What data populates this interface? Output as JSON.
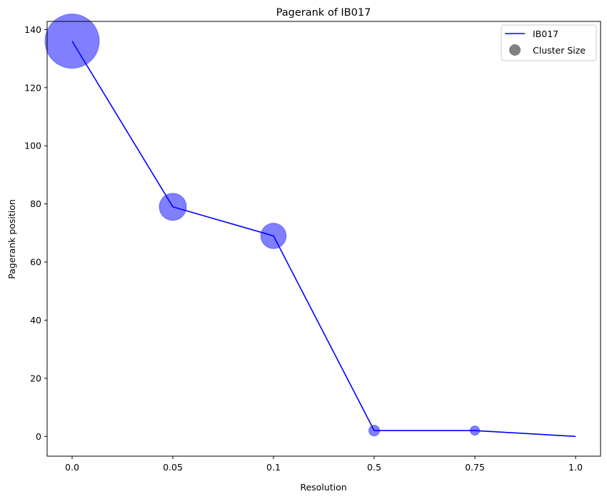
{
  "chart_data": {
    "type": "line",
    "title": "Pagerank of IB017",
    "xlabel": "Resolution",
    "ylabel": "Pagerank position",
    "categories": [
      "0.0",
      "0.05",
      "0.1",
      "0.5",
      "0.75",
      "1.0"
    ],
    "series": [
      {
        "name": "IB017",
        "values": [
          136,
          79,
          69,
          2,
          2,
          0
        ],
        "color": "#0000ff"
      }
    ],
    "cluster_size": {
      "legend_label": "Cluster Size",
      "relative_sizes": [
        1.0,
        0.25,
        0.22,
        0.04,
        0.03,
        0
      ],
      "color": "#0000ff",
      "alpha": 0.5,
      "legend_marker_color": "#808080"
    },
    "ylim": [
      -6.8,
      142.8
    ],
    "yticks": [
      0,
      20,
      40,
      60,
      80,
      100,
      120,
      140
    ],
    "grid": false,
    "legend_position": "top-right"
  }
}
